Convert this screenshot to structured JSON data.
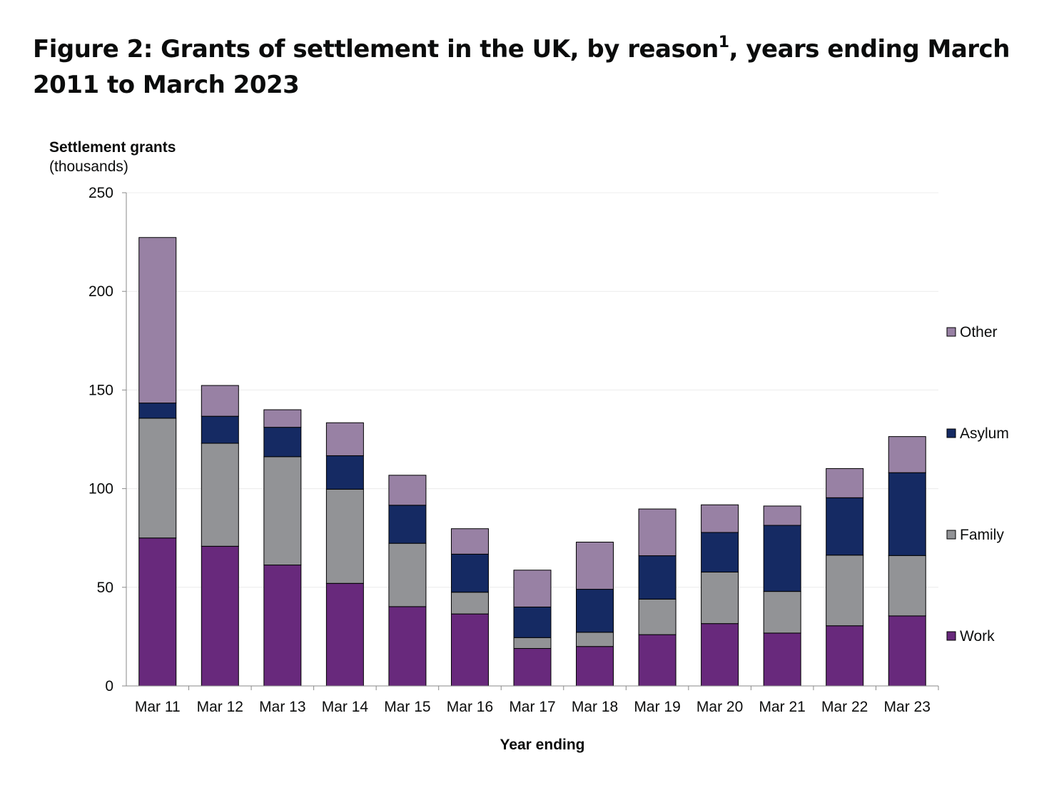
{
  "title": {
    "main": "Figure 2: Grants of settlement in the UK, by reason",
    "footnote": "1",
    "rest": ", years ending March 2011 to March 2023"
  },
  "chart_data": {
    "type": "bar",
    "stacked": true,
    "categories": [
      "Mar 11",
      "Mar 12",
      "Mar 13",
      "Mar 14",
      "Mar 15",
      "Mar 16",
      "Mar 17",
      "Mar 18",
      "Mar 19",
      "Mar 20",
      "Mar 21",
      "Mar 22",
      "Mar 23"
    ],
    "series": [
      {
        "name": "Work",
        "color": "#68297c",
        "values": [
          75.0,
          70.8,
          61.3,
          52.0,
          40.2,
          36.5,
          19.0,
          20.0,
          26.0,
          31.6,
          26.8,
          30.5,
          35.5
        ]
      },
      {
        "name": "Family",
        "color": "#929396",
        "values": [
          60.7,
          52.2,
          54.9,
          47.7,
          32.1,
          11.0,
          5.5,
          7.2,
          18.0,
          26.1,
          21.1,
          35.8,
          30.6
        ]
      },
      {
        "name": "Asylum",
        "color": "#152a63",
        "values": [
          7.7,
          13.7,
          14.9,
          17.0,
          19.3,
          19.3,
          15.5,
          21.8,
          22.0,
          20.1,
          33.5,
          29.1,
          42.0
        ]
      },
      {
        "name": "Other",
        "color": "#9881a4",
        "values": [
          83.9,
          15.6,
          8.9,
          16.7,
          15.2,
          12.9,
          18.7,
          23.9,
          23.7,
          14.0,
          9.8,
          14.8,
          18.3
        ]
      }
    ],
    "ylabel": "Settlement grants",
    "ylabel_unit": "(thousands)",
    "xlabel": "Year ending",
    "ylim": [
      0,
      250
    ],
    "yticks": [
      0,
      50,
      100,
      150,
      200,
      250
    ],
    "grid": true,
    "legend": "right"
  }
}
